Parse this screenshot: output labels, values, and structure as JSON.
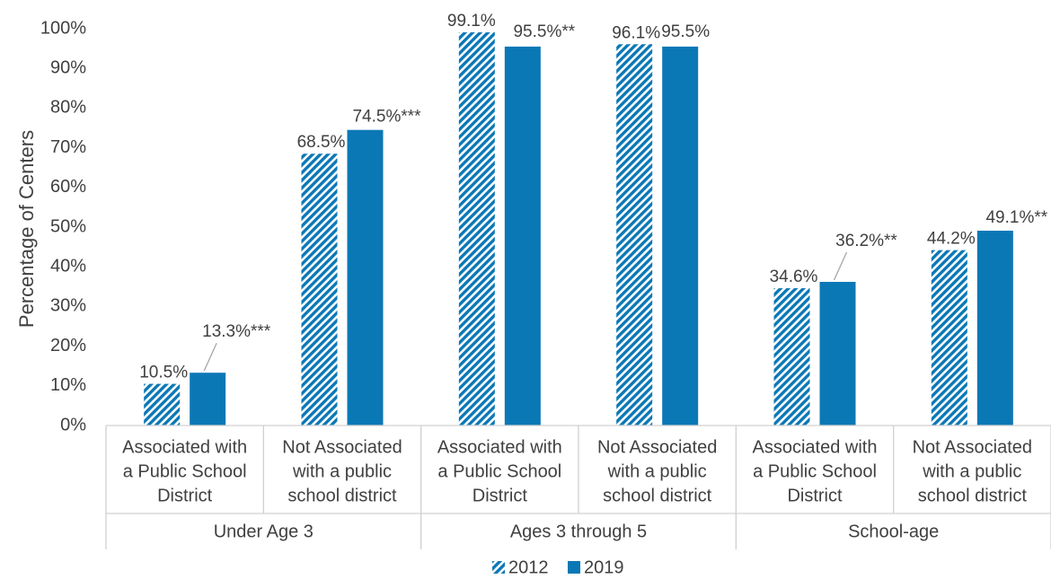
{
  "chart_data": {
    "type": "bar",
    "ylabel": "Percentage of Centers",
    "ylim": [
      0,
      100
    ],
    "yticks": [
      "0%",
      "10%",
      "20%",
      "30%",
      "40%",
      "50%",
      "60%",
      "70%",
      "80%",
      "90%",
      "100%"
    ],
    "categories": [
      {
        "lines": [
          "Associated with",
          "a Public School",
          "District"
        ]
      },
      {
        "lines": [
          "Not Associated",
          "with a public",
          "school district"
        ]
      },
      {
        "lines": [
          "Associated with",
          "a Public School",
          "District"
        ]
      },
      {
        "lines": [
          "Not Associated",
          "with a public",
          "school district"
        ]
      },
      {
        "lines": [
          "Associated with",
          "a Public School",
          "District"
        ]
      },
      {
        "lines": [
          "Not Associated",
          "with a public",
          "school district"
        ]
      }
    ],
    "groups": [
      "Under Age 3",
      "Ages 3 through 5",
      "School-age"
    ],
    "series": [
      {
        "name": "2012",
        "color": "#0b78b6",
        "pattern": "diagonal-stripes",
        "values": [
          10.5,
          68.5,
          99.1,
          96.1,
          34.6,
          44.2
        ],
        "labels": [
          "10.5%",
          "68.5%",
          "99.1%",
          "96.1%",
          "34.6%",
          "44.2%"
        ]
      },
      {
        "name": "2019",
        "color": "#0b78b6",
        "pattern": "solid",
        "values": [
          13.3,
          74.5,
          95.5,
          95.5,
          36.2,
          49.1
        ],
        "labels": [
          "13.3%***",
          "74.5%***",
          "95.5%**",
          "95.5%",
          "36.2%**",
          "49.1%**"
        ]
      }
    ],
    "legend_position": "bottom",
    "grid": false
  }
}
